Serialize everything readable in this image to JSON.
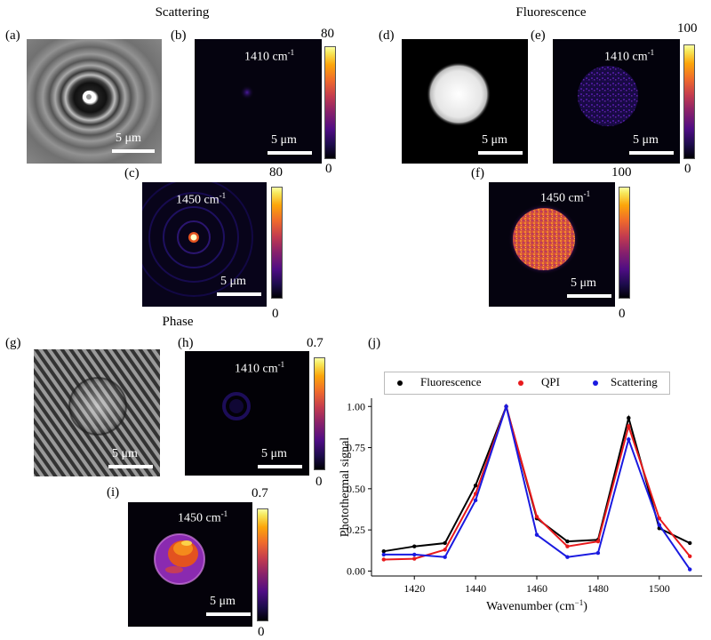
{
  "sections": {
    "scattering": "Scattering",
    "fluorescence": "Fluorescence",
    "phase": "Phase"
  },
  "panel_labels": {
    "a": "(a)",
    "b": "(b)",
    "c": "(c)",
    "d": "(d)",
    "e": "(e)",
    "f": "(f)",
    "g": "(g)",
    "h": "(h)",
    "i": "(i)",
    "j": "(j)"
  },
  "wavenumber": {
    "b": "1410 cm",
    "c": "1450 cm",
    "e": "1410 cm",
    "f": "1450 cm",
    "h": "1410 cm",
    "i": "1450 cm",
    "exp": "-1"
  },
  "scale_bar_label": "5 μm",
  "colorbars": {
    "b": {
      "max": "80",
      "min": "0"
    },
    "c": {
      "max": "80",
      "min": "0"
    },
    "e": {
      "max": "100",
      "min": "0"
    },
    "f": {
      "max": "100",
      "min": "0"
    },
    "h": {
      "max": "0.7",
      "min": "0"
    },
    "i": {
      "max": "0.7",
      "min": "0"
    }
  },
  "chart_data": {
    "type": "line",
    "xlabel": "Wavenumber (cm",
    "xlabel_exp": "−1",
    "xlabel_close": ")",
    "ylabel": "Photothermal signal",
    "xlim": [
      1406,
      1514
    ],
    "ylim": [
      -0.03,
      1.05
    ],
    "xticks": [
      1420,
      1440,
      1460,
      1480,
      1500
    ],
    "yticks": [
      0.0,
      0.25,
      0.5,
      0.75,
      1.0
    ],
    "ytick_labels": [
      "0.00",
      "0.25",
      "0.50",
      "0.75",
      "1.00"
    ],
    "grid": false,
    "legend_position": "top",
    "x": [
      1410,
      1420,
      1430,
      1440,
      1450,
      1460,
      1470,
      1480,
      1490,
      1500,
      1510
    ],
    "series": [
      {
        "name": "Fluorescence",
        "color": "#000000",
        "values": [
          0.12,
          0.15,
          0.17,
          0.52,
          1.0,
          0.32,
          0.18,
          0.19,
          0.93,
          0.26,
          0.17
        ]
      },
      {
        "name": "QPI",
        "color": "#e8191c",
        "values": [
          0.07,
          0.075,
          0.13,
          0.47,
          1.0,
          0.33,
          0.15,
          0.18,
          0.88,
          0.32,
          0.09
        ]
      },
      {
        "name": "Scattering",
        "color": "#1a1ae0",
        "values": [
          0.1,
          0.1,
          0.085,
          0.43,
          1.0,
          0.22,
          0.085,
          0.11,
          0.8,
          0.28,
          0.01
        ]
      }
    ]
  }
}
